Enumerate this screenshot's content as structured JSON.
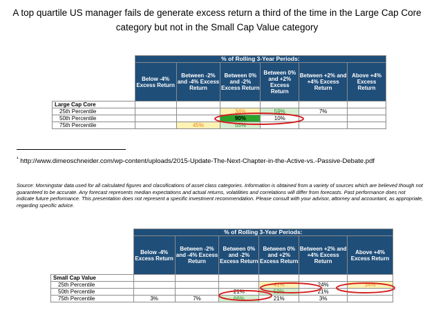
{
  "title": "A top quartile US manager fails de generate excess return a third of the time in the Large Cap Core category but not in the Small Cap Value category",
  "header": {
    "periods": "% of Rolling 3-Year Periods:",
    "cols": [
      "Below -4% Excess Return",
      "Between -2% and -4% Excess Return",
      "Between 0% and -2% Excess Return",
      "Between 0% and +2% Excess Return",
      "Between +2% and +4% Excess Return",
      "Above +4% Excess Return"
    ]
  },
  "table1": {
    "category": "Large Cap Core",
    "rows": [
      {
        "label": "25th Percentile",
        "cells": [
          "",
          "",
          "34%",
          "59%",
          "7%",
          ""
        ]
      },
      {
        "label": "50th Percentile",
        "cells": [
          "",
          "",
          "90%",
          "10%",
          "",
          ""
        ]
      },
      {
        "label": "75th Percentile",
        "cells": [
          "",
          "45%",
          "55%",
          "",
          "",
          ""
        ]
      }
    ]
  },
  "footnote": {
    "marker": "¹",
    "text": " http://www.dimeoschneider.com/wp-content/uploads/2015-Update-The-Next-Chapter-in-the-Active-vs.-Passive-Debate.pdf"
  },
  "source": "Source: Morningstar data used for all calculated figures and classifications of asset class categories. Information is obtained from a variety of sources which are believed though not guaranteed to be accurate. Any forecast represents median expectations and actual returns, volatilities and correlations will differ from forecasts. Past performance does not indicate future performance. This presentation does not represent a specific investment recommendation. Please consult with your advisor, attorney and accountant, as appropriate, regarding specific advice.",
  "table2": {
    "category": "Small Cap Value",
    "rows": [
      {
        "label": "25th Percentile",
        "cells": [
          "",
          "",
          "",
          "41%",
          "24%",
          "34%"
        ]
      },
      {
        "label": "50th Percentile",
        "cells": [
          "",
          "",
          "21%",
          "59%",
          "21%",
          ""
        ]
      },
      {
        "label": "75th Percentile",
        "cells": [
          "3%",
          "7%",
          "66%",
          "21%",
          "3%",
          ""
        ]
      }
    ]
  }
}
